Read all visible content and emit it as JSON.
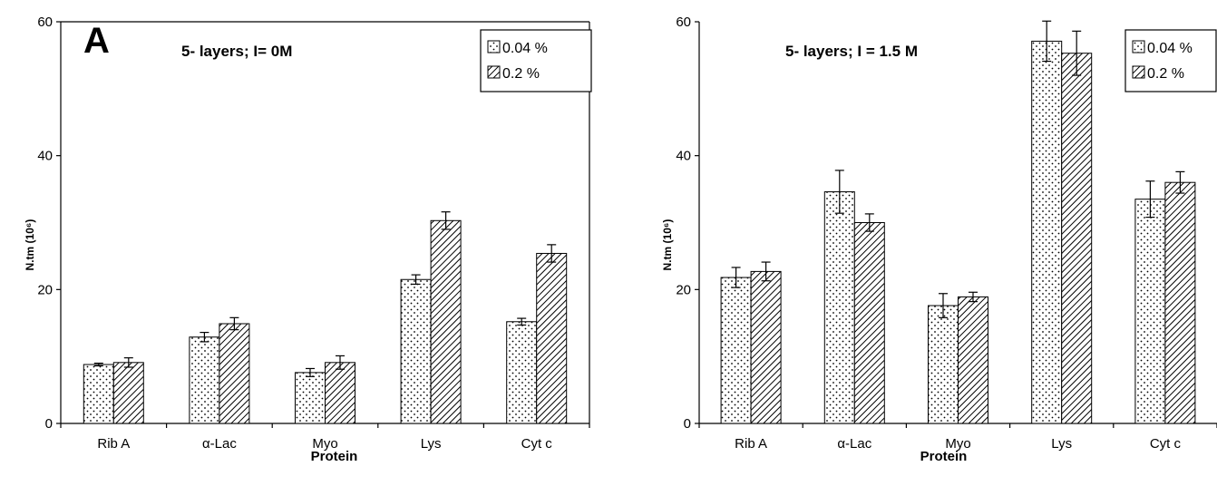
{
  "chart_data": [
    {
      "type": "bar",
      "panel_label": "A",
      "title": "5- layers; I= 0M",
      "xlabel": "Protein",
      "ylabel": "N.tm (10⁶)",
      "ylim": [
        0,
        60
      ],
      "yticks": [
        "0",
        "20",
        "40",
        "60"
      ],
      "categories": [
        "Rib A",
        "α-Lac",
        "Myo",
        "Lys",
        "Cyt c"
      ],
      "series": [
        {
          "name": "0.04 %",
          "pattern": "dots",
          "values": [
            8.8,
            12.9,
            7.6,
            21.5,
            15.2
          ],
          "errors": [
            0.2,
            0.7,
            0.6,
            0.7,
            0.5
          ]
        },
        {
          "name": "0.2 %",
          "pattern": "hatch",
          "values": [
            9.1,
            14.9,
            9.1,
            30.3,
            25.4
          ],
          "errors": [
            0.7,
            0.9,
            1.0,
            1.3,
            1.3
          ]
        }
      ],
      "legend_position": "top-right",
      "grid": false
    },
    {
      "type": "bar",
      "panel_label": "",
      "title": "5- layers; I = 1.5 M",
      "xlabel": "Protein",
      "ylabel": "N.tm (10⁶)",
      "ylim": [
        0,
        60
      ],
      "yticks": [
        "0",
        "20",
        "40",
        "60"
      ],
      "categories": [
        "Rib A",
        "α-Lac",
        "Myo",
        "Lys",
        "Cyt c"
      ],
      "series": [
        {
          "name": "0.04 %",
          "pattern": "dots",
          "values": [
            21.8,
            34.6,
            17.6,
            57.1,
            33.5
          ],
          "errors": [
            1.5,
            3.2,
            1.8,
            3.0,
            2.7
          ]
        },
        {
          "name": "0.2 %",
          "pattern": "hatch",
          "values": [
            22.7,
            30.0,
            18.9,
            55.3,
            36.0
          ],
          "errors": [
            1.4,
            1.3,
            0.7,
            3.3,
            1.6
          ]
        }
      ],
      "legend_position": "top-right",
      "grid": false
    }
  ]
}
